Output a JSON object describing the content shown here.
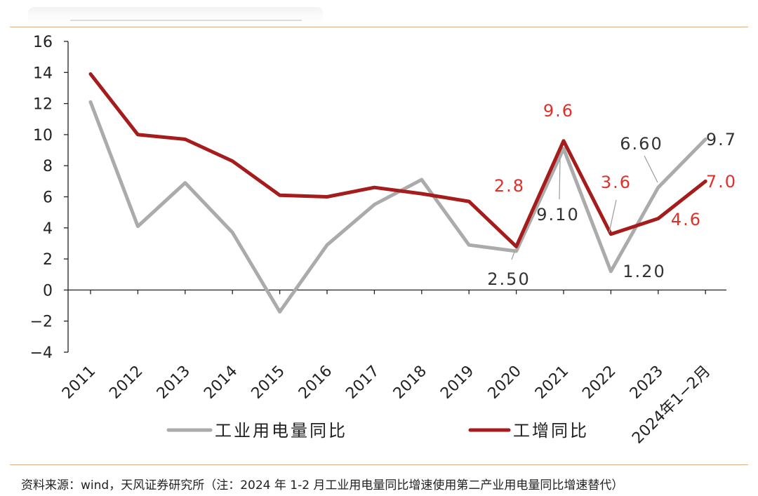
{
  "colors": {
    "series_gray": "#ababab",
    "series_red": "#a61b1b",
    "label_red": "#e0302a",
    "label_dark": "#333333",
    "axis": "#222222",
    "rule": "#d7b184"
  },
  "chart_data": {
    "type": "line",
    "title": "",
    "xlabel": "",
    "ylabel": "",
    "ylim": [
      -4,
      16
    ],
    "yticks": [
      "16",
      "14",
      "12",
      "10",
      "8",
      "6",
      "4",
      "2",
      "0",
      "−2",
      "−4"
    ],
    "ytick_values": [
      16,
      14,
      12,
      10,
      8,
      6,
      4,
      2,
      0,
      -2,
      -4
    ],
    "categories": [
      "2011",
      "2012",
      "2013",
      "2014",
      "2015",
      "2016",
      "2017",
      "2018",
      "2019",
      "2020",
      "2021",
      "2022",
      "2023",
      "2024年1−2月"
    ],
    "grid": false,
    "legend_position": "bottom",
    "series": [
      {
        "name": "工业用电量同比",
        "color": "#ababab",
        "values": [
          12.1,
          4.1,
          6.9,
          3.7,
          -1.4,
          2.9,
          5.5,
          7.1,
          2.9,
          2.5,
          9.1,
          1.2,
          6.6,
          9.7
        ]
      },
      {
        "name": "工增同比",
        "color": "#a61b1b",
        "values": [
          13.9,
          10.0,
          9.7,
          8.3,
          6.1,
          6.0,
          6.6,
          6.2,
          5.7,
          2.8,
          9.6,
          3.6,
          4.6,
          7.0
        ]
      }
    ],
    "data_labels": [
      {
        "series": 0,
        "index": 9,
        "text": "2.50"
      },
      {
        "series": 0,
        "index": 10,
        "text": "9.10"
      },
      {
        "series": 0,
        "index": 11,
        "text": "1.20"
      },
      {
        "series": 0,
        "index": 12,
        "text": "6.60"
      },
      {
        "series": 0,
        "index": 13,
        "text": "9.7"
      },
      {
        "series": 1,
        "index": 9,
        "text": "2.8"
      },
      {
        "series": 1,
        "index": 10,
        "text": "9.6"
      },
      {
        "series": 1,
        "index": 11,
        "text": "3.6"
      },
      {
        "series": 1,
        "index": 12,
        "text": "4.6"
      },
      {
        "series": 1,
        "index": 13,
        "text": "7.0"
      }
    ]
  },
  "footer": {
    "source": "资料来源：wind，天风证券研究所（注：2024 年 1-2 月工业用电量同比增速使用第二产业用电量同比增速替代）"
  }
}
